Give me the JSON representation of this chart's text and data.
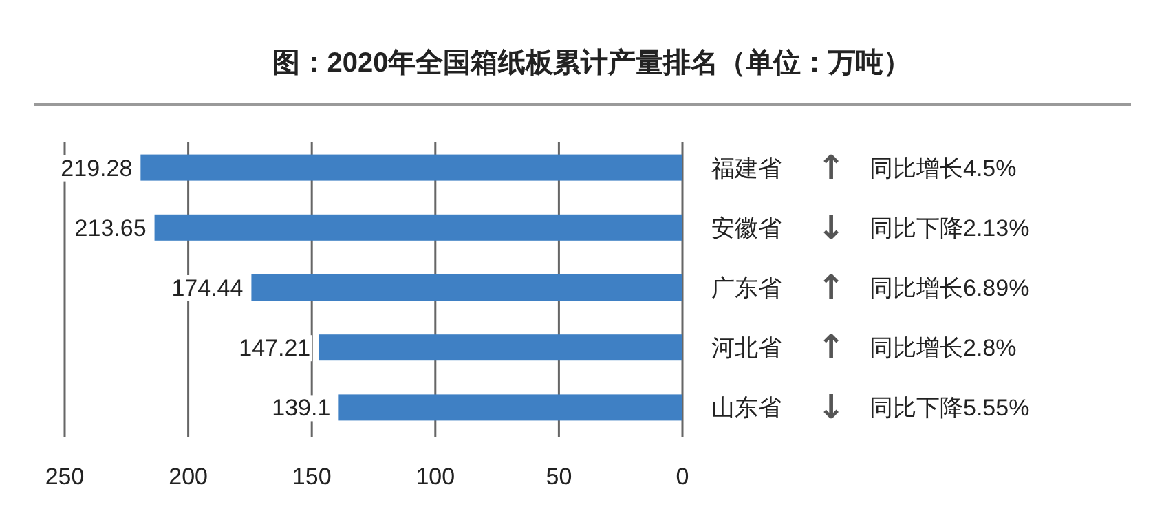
{
  "chart_data": {
    "type": "bar",
    "orientation": "horizontal",
    "title": "图：2020年全国箱纸板累计产量排名（单位：万吨）",
    "categories": [
      "福建省",
      "安徽省",
      "广东省",
      "河北省",
      "山东省"
    ],
    "values": [
      219.28,
      213.65,
      174.44,
      147.21,
      139.1
    ],
    "color": "#3f80c4",
    "xlim": [
      250,
      0
    ],
    "xticks": [
      250,
      200,
      150,
      100,
      50,
      0
    ],
    "grid": "x",
    "data_labels": true,
    "annotations": [
      "↑",
      "同比增长4.5%",
      "↓",
      "同比下降2.13%",
      "↑",
      "同比增长6.89%",
      "↑",
      "同比增长2.8%",
      "↓",
      "同比下降5.55%"
    ]
  }
}
